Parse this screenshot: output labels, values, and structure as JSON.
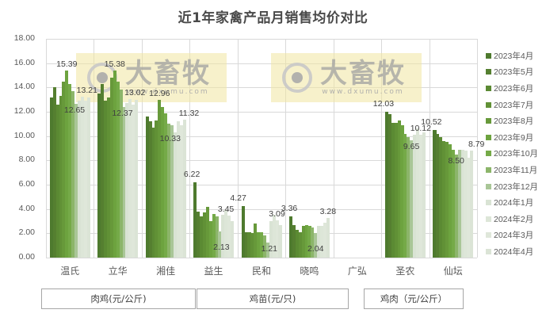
{
  "chart_data": {
    "type": "bar",
    "title": "近1年家禽产品月销售均价对比",
    "xlabel": "",
    "ylabel": "",
    "ylim": [
      0,
      18
    ],
    "yticks": [
      "0.00",
      "2.00",
      "4.00",
      "6.00",
      "8.00",
      "10.00",
      "12.00",
      "14.00",
      "16.00",
      "18.00"
    ],
    "grid": true,
    "legend_position": "right",
    "categories": [
      "温氏",
      "立华",
      "湘佳",
      "益生",
      "民和",
      "晓鸣",
      "广弘",
      "圣农",
      "仙坛"
    ],
    "category_groups": [
      {
        "label": "肉鸡(元/公斤)",
        "categories": [
          "温氏",
          "立华",
          "湘佳"
        ]
      },
      {
        "label": "鸡苗(元/只)",
        "categories": [
          "益生",
          "民和",
          "晓鸣"
        ]
      },
      {
        "label": "鸡肉（元/公斤）",
        "categories": [
          "广弘",
          "圣农",
          "仙坛"
        ]
      }
    ],
    "series": [
      {
        "name": "2023年4月",
        "color": "#4e7a2e",
        "values": [
          13.2,
          13.5,
          11.6,
          6.22,
          4.27,
          3.36,
          null,
          12.03,
          10.52
        ]
      },
      {
        "name": "2023年5月",
        "color": "#557f30",
        "values": [
          14.0,
          14.3,
          11.2,
          3.8,
          2.1,
          2.7,
          null,
          11.8,
          10.2
        ]
      },
      {
        "name": "2023年6月",
        "color": "#5b8a33",
        "values": [
          12.6,
          12.9,
          10.7,
          3.4,
          2.1,
          2.3,
          null,
          11.1,
          9.9
        ]
      },
      {
        "name": "2023年7月",
        "color": "#619136",
        "values": [
          13.3,
          13.2,
          11.3,
          3.7,
          2.0,
          2.1,
          null,
          11.1,
          9.6
        ]
      },
      {
        "name": "2023年8月",
        "color": "#67993a",
        "values": [
          14.5,
          14.8,
          12.96,
          4.2,
          2.8,
          2.6,
          null,
          11.3,
          9.5
        ]
      },
      {
        "name": "2023年9月",
        "color": "#6da33f",
        "values": [
          15.39,
          15.38,
          12.4,
          3.0,
          2.1,
          2.7,
          null,
          10.9,
          9.3
        ]
      },
      {
        "name": "2023年10月",
        "color": "#75aa48",
        "values": [
          14.3,
          14.5,
          11.9,
          3.6,
          2.1,
          2.6,
          null,
          10.2,
          8.9
        ]
      },
      {
        "name": "2023年11月",
        "color": "#8cb56a",
        "values": [
          13.7,
          13.8,
          11.0,
          3.4,
          1.8,
          2.5,
          null,
          9.9,
          8.5
        ]
      },
      {
        "name": "2023年12月",
        "color": "#a9c697",
        "values": [
          12.65,
          12.37,
          10.9,
          2.13,
          1.21,
          2.04,
          null,
          9.65,
          8.9
        ]
      },
      {
        "name": "2024年1月",
        "color": "#d9e3d4",
        "values": [
          12.9,
          12.7,
          10.33,
          3.5,
          3.0,
          2.6,
          null,
          10.1,
          8.9
        ]
      },
      {
        "name": "2024年2月",
        "color": "#dde6d8",
        "values": [
          13.21,
          13.02,
          11.2,
          3.9,
          3.5,
          2.6,
          null,
          10.6,
          8.8
        ]
      },
      {
        "name": "2024年3月",
        "color": "#dfe7da",
        "values": [
          12.9,
          12.6,
          10.9,
          3.45,
          3.09,
          2.9,
          null,
          10.12,
          8.2
        ]
      },
      {
        "name": "2024年4月",
        "color": "#dbe4d6",
        "values": [
          13.2,
          13.0,
          11.32,
          3.0,
          2.7,
          3.28,
          null,
          10.3,
          8.79
        ]
      }
    ],
    "data_labels": [
      {
        "category": "温氏",
        "series": "2023年9月",
        "text": "15.39"
      },
      {
        "category": "温氏",
        "series": "2024年2月",
        "text": "13.21"
      },
      {
        "category": "温氏",
        "series": "2023年12月",
        "text": "12.65"
      },
      {
        "category": "立华",
        "series": "2023年9月",
        "text": "15.38"
      },
      {
        "category": "立华",
        "series": "2024年2月",
        "text": "13.02"
      },
      {
        "category": "立华",
        "series": "2023年12月",
        "text": "12.37"
      },
      {
        "category": "湘佳",
        "series": "2023年8月",
        "text": "12.96"
      },
      {
        "category": "湘佳",
        "series": "2024年4月",
        "text": "11.32"
      },
      {
        "category": "湘佳",
        "series": "2024年1月",
        "text": "10.33"
      },
      {
        "category": "益生",
        "series": "2023年4月",
        "text": "6.22"
      },
      {
        "category": "益生",
        "series": "2024年3月",
        "text": "3.45"
      },
      {
        "category": "益生",
        "series": "2023年12月",
        "text": "2.13"
      },
      {
        "category": "民和",
        "series": "2023年4月",
        "text": "4.27"
      },
      {
        "category": "民和",
        "series": "2024年3月",
        "text": "3.09"
      },
      {
        "category": "民和",
        "series": "2023年12月",
        "text": "1.21"
      },
      {
        "category": "晓鸣",
        "series": "2023年4月",
        "text": "3.36"
      },
      {
        "category": "晓鸣",
        "series": "2024年4月",
        "text": "3.28"
      },
      {
        "category": "晓鸣",
        "series": "2023年12月",
        "text": "2.04"
      },
      {
        "category": "圣农",
        "series": "2023年4月",
        "text": "12.03"
      },
      {
        "category": "圣农",
        "series": "2024年3月",
        "text": "10.12"
      },
      {
        "category": "圣农",
        "series": "2023年12月",
        "text": "9.65"
      },
      {
        "category": "仙坛",
        "series": "2023年4月",
        "text": "10.52"
      },
      {
        "category": "仙坛",
        "series": "2024年4月",
        "text": "8.79"
      },
      {
        "category": "仙坛",
        "series": "2023年11月",
        "text": "8.50"
      }
    ]
  },
  "watermark": {
    "text": "大畜牧",
    "url_text": "www.dxumu.com"
  }
}
